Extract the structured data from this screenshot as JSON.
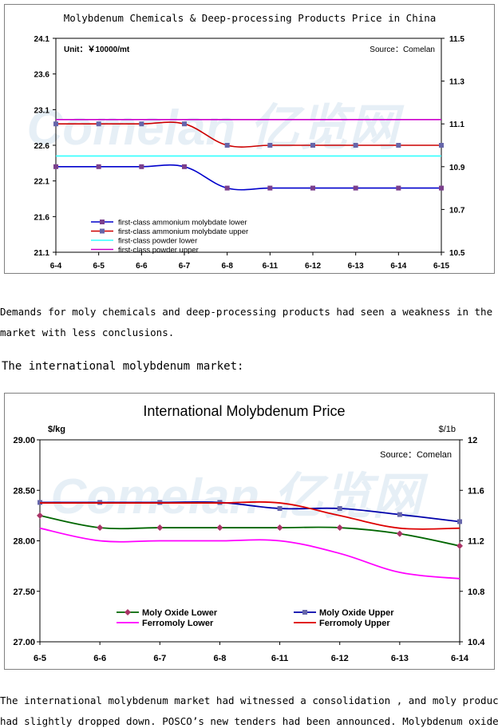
{
  "charts": [
    {
      "title": "Molybdenum Chemicals & Deep-processing Products Price in China",
      "unit_label": "Unit：￥10000/mt",
      "source_label": "Source：Comelan",
      "watermark": "Comelan 亿览网",
      "type": "line",
      "categories": [
        "6-4",
        "6-5",
        "6-6",
        "6-7",
        "6-8",
        "6-11",
        "6-12",
        "6-13",
        "6-14",
        "6-15"
      ],
      "y_left": {
        "min": 21.1,
        "max": 24.1,
        "ticks": [
          "24.1",
          "23.6",
          "23.1",
          "22.6",
          "22.1",
          "21.6",
          "21.1"
        ]
      },
      "y_right": {
        "min": 10.5,
        "max": 11.5,
        "ticks": [
          "11.5",
          "11.3",
          "11.1",
          "10.9",
          "10.7",
          "10.5"
        ]
      },
      "series": [
        {
          "name": "first-class ammonium molybdate lower",
          "axis": "left",
          "color": "#0000cc",
          "marker": "square",
          "markerColor": "#7b3f8c",
          "values": [
            22.3,
            22.3,
            22.3,
            22.3,
            22.0,
            22.0,
            22.0,
            22.0,
            22.0,
            22.0
          ]
        },
        {
          "name": "first-class ammonium molybdate upper",
          "axis": "left",
          "color": "#cc0000",
          "marker": "square",
          "markerColor": "#6666aa",
          "values": [
            22.9,
            22.9,
            22.9,
            22.9,
            22.6,
            22.6,
            22.6,
            22.6,
            22.6,
            22.6
          ]
        },
        {
          "name": "first-class powder lower",
          "axis": "right",
          "color": "#33ffff",
          "marker": "none",
          "values": [
            10.95,
            10.95,
            10.95,
            10.95,
            10.95,
            10.95,
            10.95,
            10.95,
            10.95,
            10.95
          ]
        },
        {
          "name": "first-class powder upper",
          "axis": "right",
          "color": "#cc00cc",
          "marker": "none",
          "values": [
            11.12,
            11.12,
            11.12,
            11.12,
            11.12,
            11.12,
            11.12,
            11.12,
            11.12,
            11.12
          ]
        }
      ]
    },
    {
      "title": "International Molybdenum Price",
      "unit_left": "$/kg",
      "unit_right": "$/1b",
      "source_label": "Source：Comelan",
      "watermark": "Comelan 亿览网",
      "type": "line",
      "categories": [
        "6-5",
        "6-6",
        "6-7",
        "6-8",
        "6-11",
        "6-12",
        "6-13",
        "6-14"
      ],
      "y_left": {
        "min": 27.0,
        "max": 29.0,
        "ticks": [
          "29.00",
          "28.50",
          "28.00",
          "27.50",
          "27.00"
        ]
      },
      "y_right": {
        "min": 10.4,
        "max": 12.0,
        "ticks": [
          "12",
          "11.6",
          "11.2",
          "10.8",
          "10.4"
        ]
      },
      "series": [
        {
          "name": "Moly Oxide Lower",
          "axis": "left",
          "color": "#006600",
          "marker": "diamond",
          "markerColor": "#aa3366",
          "values": [
            28.25,
            28.13,
            28.13,
            28.13,
            28.13,
            28.13,
            28.07,
            27.95
          ]
        },
        {
          "name": "Moly Oxide Upper",
          "axis": "left",
          "color": "#0000aa",
          "marker": "square",
          "markerColor": "#6666aa",
          "values": [
            28.38,
            28.38,
            28.38,
            28.38,
            28.32,
            28.32,
            28.26,
            28.19
          ]
        },
        {
          "name": "Ferromoly Lower",
          "axis": "right",
          "color": "#ff00ff",
          "marker": "none",
          "values": [
            11.3,
            11.2,
            11.2,
            11.2,
            11.2,
            11.1,
            10.95,
            10.9
          ]
        },
        {
          "name": "Ferromoly Upper",
          "axis": "right",
          "color": "#dd0000",
          "marker": "none",
          "values": [
            11.5,
            11.5,
            11.5,
            11.5,
            11.5,
            11.4,
            11.3,
            11.3
          ]
        }
      ]
    }
  ],
  "text": {
    "para1_line1": "    Demands for moly chemicals and deep-processing products had seen a weakness in the thin",
    "para1_line2": "market with less conclusions.",
    "heading": "The international molybdenum market:",
    "para2_line1": "    The international molybdenum market had witnessed a consolidation , and moly products price",
    "para2_line2": "had slightly dropped down. POSCO’s new tenders had been announced. Molybdenum oxide briquette"
  }
}
